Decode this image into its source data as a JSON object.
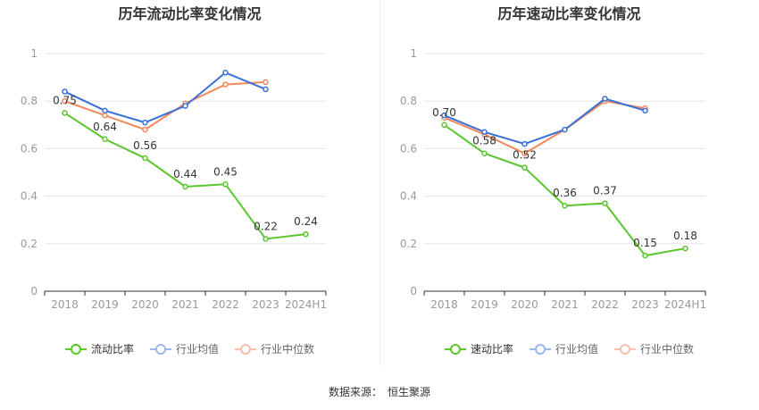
{
  "colors": {
    "primary": "#5cc62f",
    "industry_avg": "#3a70d8",
    "industry_median": "#f2895a",
    "avg_legend": "#9bb8ec",
    "median_legend": "#f7c0a8",
    "grid": "#e6e6e6",
    "axis_text": "#999999",
    "label_text": "#333333"
  },
  "source": {
    "label": "数据来源：",
    "value": "恒生聚源"
  },
  "chart_data": [
    {
      "type": "line",
      "title": "历年流动比率变化情况",
      "categories": [
        "2018",
        "2019",
        "2020",
        "2021",
        "2022",
        "2023",
        "2024H1"
      ],
      "ylim": [
        0,
        1
      ],
      "yticks": [
        "0",
        "0.2",
        "0.4",
        "0.6",
        "0.8",
        "1"
      ],
      "grid": true,
      "legend_position": "bottom",
      "series": [
        {
          "name": "流动比率",
          "values": [
            0.75,
            0.64,
            0.56,
            0.44,
            0.45,
            0.22,
            0.24
          ],
          "labels": [
            "0.75",
            "0.64",
            "0.56",
            "0.44",
            "0.45",
            "0.22",
            "0.24"
          ]
        },
        {
          "name": "行业均值",
          "values": [
            0.84,
            0.76,
            0.71,
            0.78,
            0.92,
            0.85,
            null
          ]
        },
        {
          "name": "行业中位数",
          "values": [
            0.8,
            0.74,
            0.68,
            0.79,
            0.87,
            0.88,
            null
          ]
        }
      ]
    },
    {
      "type": "line",
      "title": "历年速动比率变化情况",
      "categories": [
        "2018",
        "2019",
        "2020",
        "2021",
        "2022",
        "2023",
        "2024H1"
      ],
      "ylim": [
        0,
        1
      ],
      "yticks": [
        "0",
        "0.2",
        "0.4",
        "0.6",
        "0.8",
        "1"
      ],
      "grid": true,
      "legend_position": "bottom",
      "series": [
        {
          "name": "速动比率",
          "values": [
            0.7,
            0.58,
            0.52,
            0.36,
            0.37,
            0.15,
            0.18
          ],
          "labels": [
            "0.70",
            "0.58",
            "0.52",
            "0.36",
            "0.37",
            "0.15",
            "0.18"
          ]
        },
        {
          "name": "行业均值",
          "values": [
            0.74,
            0.67,
            0.62,
            0.68,
            0.81,
            0.76,
            null
          ]
        },
        {
          "name": "行业中位数",
          "values": [
            0.73,
            0.66,
            0.58,
            0.68,
            0.8,
            0.77,
            null
          ]
        }
      ]
    }
  ]
}
